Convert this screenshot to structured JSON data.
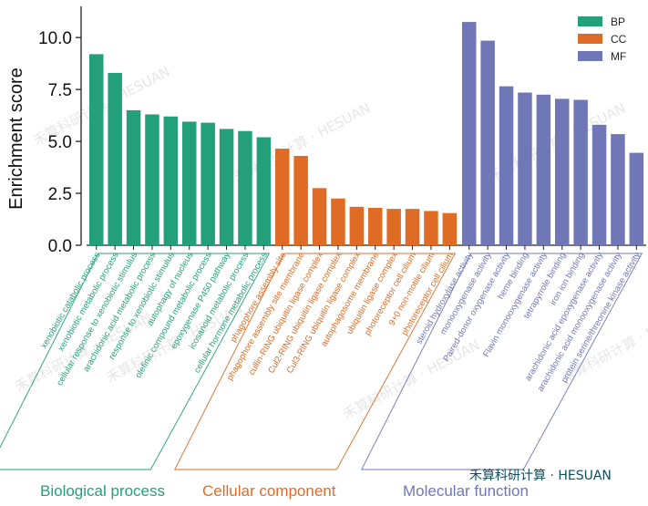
{
  "chart_data": {
    "type": "bar",
    "ylabel": "Enrichment score",
    "ylim": [
      0,
      11.5
    ],
    "yticks": [
      "0.0",
      "2.5",
      "5.0",
      "7.5",
      "10.0"
    ],
    "legend_placement": "top-right",
    "groups": [
      {
        "key": "BP",
        "title": "Biological process",
        "color": "#23a07a",
        "categories": [
          "xenobiotic catabolic process",
          "xenobiotic metabolic process",
          "cellular response to xenobiotic stimulus",
          "arachidonic acid metabolic process",
          "response to xenobiotic stimulus",
          "autophagy of nucleus",
          "olefinic compound metabolic process",
          "epoxygenase P450 pathway",
          "icosanoid metabolic process",
          "cellular hormone metabolic process"
        ],
        "values": [
          9.2,
          8.3,
          6.5,
          6.3,
          6.2,
          5.95,
          5.9,
          5.6,
          5.5,
          5.2
        ]
      },
      {
        "key": "CC",
        "title": "Cellular component",
        "color": "#e06b24",
        "categories": [
          "phagophore assembly site",
          "phagophore assembly site membrane",
          "cullin-RING ubiquitin ligase complex",
          "Cul2-RING ubiquitin ligase complex",
          "Cul3-RING ubiquitin ligase complex",
          "autophagosome membrane",
          "ubiquitin ligase complex",
          "photoreceptor cell cilium",
          "9+0 non-motile cilium",
          "photoreceptor cell cilium"
        ],
        "values": [
          4.65,
          4.3,
          2.75,
          2.25,
          1.85,
          1.8,
          1.75,
          1.75,
          1.65,
          1.55
        ]
      },
      {
        "key": "MF",
        "title": "Molecular function",
        "color": "#7077b6",
        "categories": [
          "steroid hydroxylase activity",
          "monooxygenase activity",
          "Paired-donor oxygenase activity",
          "heme binding",
          "Flavin monooxygenase activity",
          "tetrapyrrole binding",
          "iron ion binding",
          "arachidonic acid epoxygenase activity",
          "arachidonic acid monooxygenase activity",
          "protein serine/threonine kinase activity"
        ],
        "values": [
          10.75,
          9.85,
          7.65,
          7.35,
          7.25,
          7.05,
          7.0,
          5.8,
          5.35,
          4.45
        ]
      }
    ]
  },
  "legend": [
    {
      "label": "BP",
      "color": "#23a07a"
    },
    {
      "label": "CC",
      "color": "#e06b24"
    },
    {
      "label": "MF",
      "color": "#7077b6"
    }
  ],
  "watermark": {
    "text": "禾算科研计算 · HESUAN",
    "brand": "禾算科研计算 · HESUAN"
  }
}
